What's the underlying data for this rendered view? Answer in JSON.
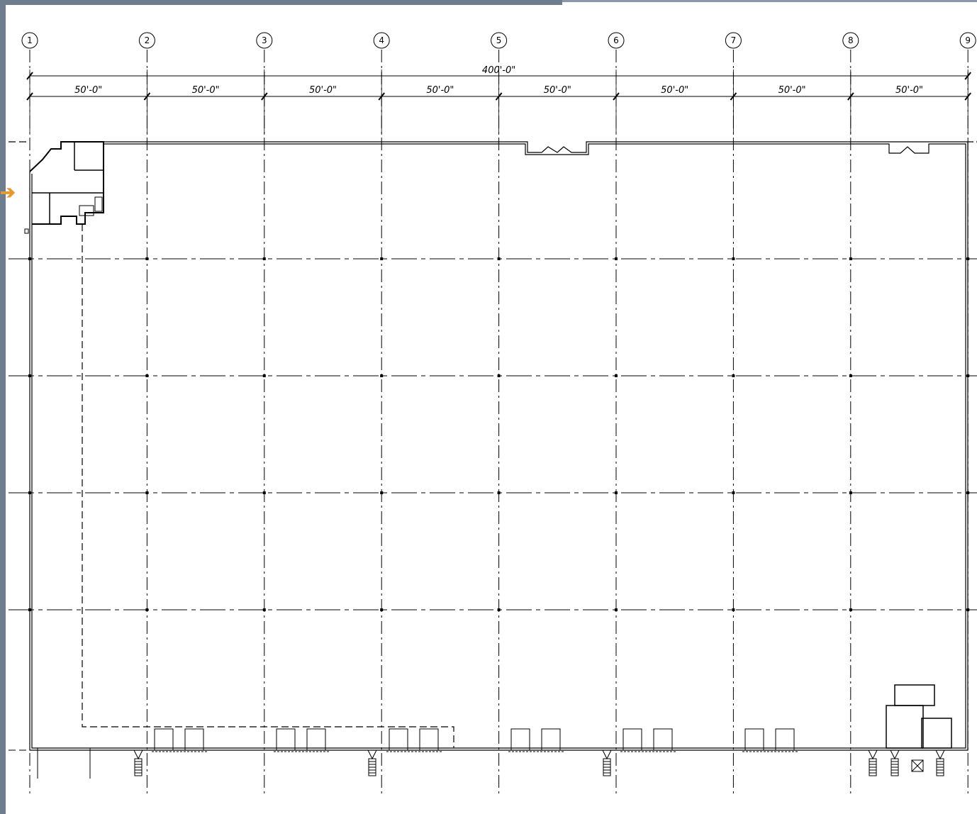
{
  "colors": {
    "frame": "#6f7d8f",
    "pointer": "#e39a36",
    "linework": "#000000"
  },
  "pointer_icon": "orange-arrow-icon",
  "grid_columns": [
    "1",
    "2",
    "3",
    "4",
    "5",
    "6",
    "7",
    "8",
    "9"
  ],
  "overall_dimension": "400'-0\"",
  "bay_dimensions": [
    "50'-0\"",
    "50'-0\"",
    "50'-0\"",
    "50'-0\"",
    "50'-0\"",
    "50'-0\"",
    "50'-0\"",
    "50'-0\""
  ]
}
